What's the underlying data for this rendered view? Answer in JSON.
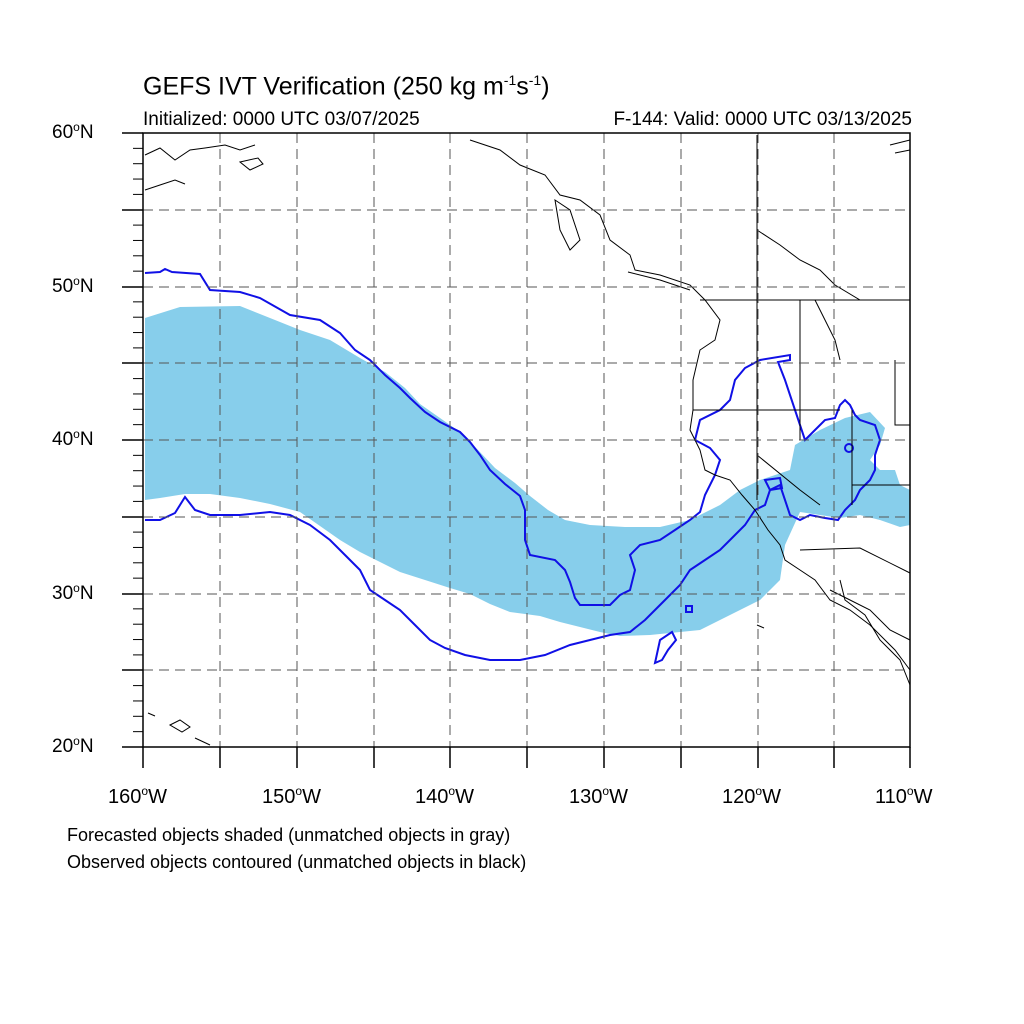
{
  "title": {
    "main": "GEFS IVT Verification (250 kg m",
    "sup1": "-1",
    "mid": "s",
    "sup2": "-1",
    "end": ")"
  },
  "initialized": "Initialized: 0000 UTC 03/07/2025",
  "valid": "F-144: Valid: 0000 UTC 03/13/2025",
  "lat_labels": [
    {
      "value": "60",
      "suffix": "N"
    },
    {
      "value": "50",
      "suffix": "N"
    },
    {
      "value": "40",
      "suffix": "N"
    },
    {
      "value": "30",
      "suffix": "N"
    },
    {
      "value": "20",
      "suffix": "N"
    }
  ],
  "lon_labels": [
    {
      "value": "160",
      "suffix": "W"
    },
    {
      "value": "150",
      "suffix": "W"
    },
    {
      "value": "140",
      "suffix": "W"
    },
    {
      "value": "130",
      "suffix": "W"
    },
    {
      "value": "120",
      "suffix": "W"
    },
    {
      "value": "110",
      "suffix": "W"
    }
  ],
  "degree_symbol": "o",
  "notes": {
    "line1": "Forecasted objects shaded (unmatched objects in gray)",
    "line2": "Observed objects contoured (unmatched objects in black)"
  },
  "colors": {
    "forecast_fill": "#87ceeb",
    "observed_contour": "#1010e6",
    "coastline": "#000000",
    "grid": "#555555"
  },
  "map_extent": {
    "lon_min": -160,
    "lon_max": -110,
    "lat_min": 20,
    "lat_max": 60
  },
  "gridlines": "dashed every 5 degrees"
}
